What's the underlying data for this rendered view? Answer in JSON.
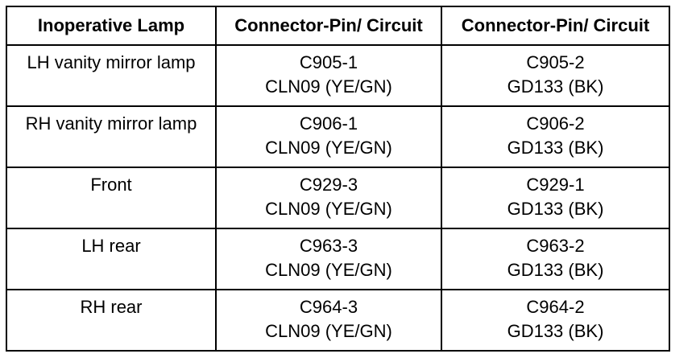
{
  "table": {
    "header": [
      "Inoperative Lamp",
      "Connector-Pin/ Circuit",
      "Connector-Pin/ Circuit"
    ],
    "rows": [
      [
        [
          "LH vanity mirror lamp"
        ],
        [
          "C905-1",
          "CLN09 (YE/GN)"
        ],
        [
          "C905-2",
          "GD133 (BK)"
        ]
      ],
      [
        [
          "RH vanity mirror lamp"
        ],
        [
          "C906-1",
          "CLN09 (YE/GN)"
        ],
        [
          "C906-2",
          "GD133 (BK)"
        ]
      ],
      [
        [
          "Front"
        ],
        [
          "C929-3",
          "CLN09 (YE/GN)"
        ],
        [
          "C929-1",
          "GD133 (BK)"
        ]
      ],
      [
        [
          "LH rear"
        ],
        [
          "C963-3",
          "CLN09 (YE/GN)"
        ],
        [
          "C963-2",
          "GD133 (BK)"
        ]
      ],
      [
        [
          "RH rear"
        ],
        [
          "C964-3",
          "CLN09 (YE/GN)"
        ],
        [
          "C964-2",
          "GD133 (BK)"
        ]
      ]
    ]
  }
}
